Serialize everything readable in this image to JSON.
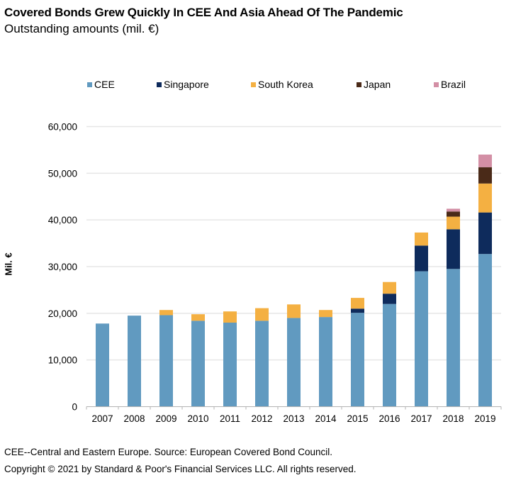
{
  "header": {
    "title": "Covered Bonds Grew Quickly In CEE And Asia Ahead Of The Pandemic",
    "subtitle": "Outstanding amounts (mil. €)"
  },
  "footer": {
    "note": "CEE--Central and Eastern Europe. Source: European Covered Bond Council.",
    "copyright": "Copyright © 2021 by Standard & Poor's Financial Services LLC. All rights reserved."
  },
  "chart_data": {
    "type": "bar",
    "stacked": true,
    "title": "Covered Bonds Grew Quickly In CEE And Asia Ahead Of The Pandemic",
    "subtitle": "Outstanding amounts (mil. €)",
    "xlabel": "",
    "ylabel": "Mil. €",
    "ylim": [
      0,
      60000
    ],
    "yticks": [
      0,
      10000,
      20000,
      30000,
      40000,
      50000,
      60000
    ],
    "ytick_labels": [
      "0",
      "10,000",
      "20,000",
      "30,000",
      "40,000",
      "50,000",
      "60,000"
    ],
    "grid": true,
    "legend_position": "top",
    "categories": [
      "2007",
      "2008",
      "2009",
      "2010",
      "2011",
      "2012",
      "2013",
      "2014",
      "2015",
      "2016",
      "2017",
      "2018",
      "2019"
    ],
    "series": [
      {
        "name": "CEE",
        "color": "#619ac0",
        "values": [
          17800,
          19500,
          19600,
          18400,
          18000,
          18400,
          19000,
          19200,
          20100,
          22000,
          29000,
          29500,
          32700
        ]
      },
      {
        "name": "Singapore",
        "color": "#0e2b5c",
        "values": [
          0,
          0,
          0,
          0,
          0,
          0,
          0,
          0,
          900,
          2200,
          5500,
          8500,
          8900
        ]
      },
      {
        "name": "South Korea",
        "color": "#f4b042",
        "values": [
          0,
          0,
          1100,
          1400,
          2400,
          2700,
          2900,
          1500,
          2300,
          2500,
          2800,
          2700,
          6200
        ]
      },
      {
        "name": "Japan",
        "color": "#4a2a18",
        "values": [
          0,
          0,
          0,
          0,
          0,
          0,
          0,
          0,
          0,
          0,
          0,
          1100,
          3500
        ]
      },
      {
        "name": "Brazil",
        "color": "#d38fa5",
        "values": [
          0,
          0,
          0,
          0,
          0,
          0,
          0,
          0,
          0,
          0,
          0,
          600,
          2700
        ]
      }
    ]
  }
}
